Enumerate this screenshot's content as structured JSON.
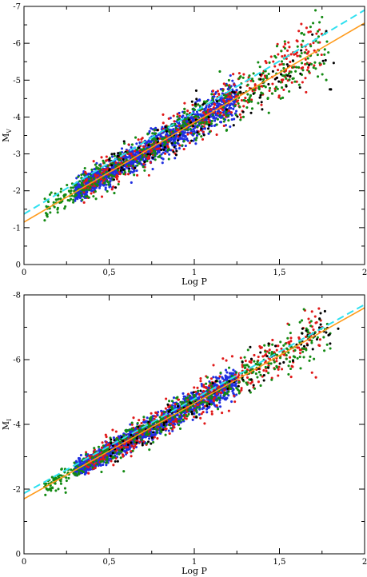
{
  "chart_data": [
    {
      "type": "scatter",
      "xlabel": "Log P",
      "ylabel_main": "M",
      "ylabel_sub": "V",
      "xlim": [
        0,
        2
      ],
      "ylim": [
        0,
        -7
      ],
      "x_ticks": [
        0,
        0.5,
        1,
        1.5,
        2
      ],
      "x_tick_labels": [
        "0",
        "0,5",
        "1",
        "1,5",
        "2"
      ],
      "y_ticks": [
        0,
        -1,
        -2,
        -3,
        -4,
        -5,
        -6,
        -7
      ],
      "y_tick_labels": [
        "0",
        "-1",
        "-2",
        "-3",
        "-4",
        "-5",
        "-6",
        "-7"
      ],
      "grid": false,
      "colors": {
        "blue": "#1f2fe0",
        "red": "#e01818",
        "green": "#138a13",
        "black": "#000000",
        "solid_fit": "#ff9a1a",
        "dashed_fit": "#2fe0f0"
      },
      "series": [
        {
          "color": "blue",
          "x_range": [
            0.3,
            1.25
          ],
          "count": 1600,
          "scatter": 0.18
        },
        {
          "color": "red",
          "x_range": [
            0.35,
            1.75
          ],
          "count": 450,
          "scatter": 0.26
        },
        {
          "color": "green",
          "x_range": [
            0.12,
            1.8
          ],
          "count": 480,
          "scatter": 0.27
        },
        {
          "color": "black",
          "x_range": [
            0.5,
            1.85
          ],
          "count": 110,
          "scatter": 0.28
        }
      ],
      "fits": [
        {
          "style": "solid",
          "color": "solid_fit",
          "x": [
            0,
            2
          ],
          "y": [
            -1.15,
            -6.55
          ]
        },
        {
          "style": "dashed",
          "color": "dashed_fit",
          "x": [
            0,
            2
          ],
          "y": [
            -1.37,
            -6.9
          ]
        }
      ]
    },
    {
      "type": "scatter",
      "xlabel": "Log P",
      "ylabel_main": "M",
      "ylabel_sub": "I",
      "xlim": [
        0,
        2
      ],
      "ylim": [
        0,
        -8
      ],
      "x_ticks": [
        0,
        0.5,
        1,
        1.5,
        2
      ],
      "x_tick_labels": [
        "0",
        "0,5",
        "1",
        "1,5",
        "2"
      ],
      "y_ticks": [
        0,
        -2,
        -4,
        -6,
        -8
      ],
      "y_tick_labels": [
        "0",
        "-2",
        "-4",
        "-6",
        "-8"
      ],
      "grid": false,
      "colors": {
        "blue": "#1f2fe0",
        "red": "#e01818",
        "green": "#138a13",
        "black": "#000000",
        "solid_fit": "#ff9a1a",
        "dashed_fit": "#2fe0f0"
      },
      "series": [
        {
          "color": "blue",
          "x_range": [
            0.3,
            1.25
          ],
          "count": 1600,
          "scatter": 0.16
        },
        {
          "color": "red",
          "x_range": [
            0.35,
            1.75
          ],
          "count": 450,
          "scatter": 0.24
        },
        {
          "color": "green",
          "x_range": [
            0.12,
            1.8
          ],
          "count": 480,
          "scatter": 0.24
        },
        {
          "color": "black",
          "x_range": [
            0.5,
            1.85
          ],
          "count": 110,
          "scatter": 0.25
        }
      ],
      "fits": [
        {
          "style": "solid",
          "color": "solid_fit",
          "x": [
            0,
            2
          ],
          "y": [
            -1.7,
            -7.6
          ]
        },
        {
          "style": "dashed",
          "color": "dashed_fit",
          "x": [
            0,
            2
          ],
          "y": [
            -1.87,
            -7.7
          ]
        }
      ]
    }
  ]
}
